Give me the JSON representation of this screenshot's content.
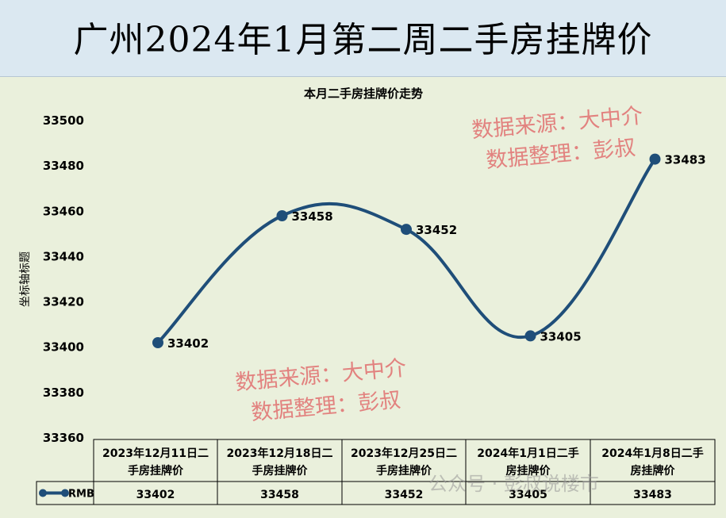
{
  "page": {
    "title": "广州2024年1月第二周二手房挂牌价"
  },
  "watermarks": {
    "source_line": "数据来源：大中介",
    "organizer_line": "数据整理：彭叔",
    "footer": "公众号 · 彭叔说楼市"
  },
  "colors": {
    "line": "#1f4e79",
    "header_bg": "#dbe8f1",
    "plot_bg": "#eaf0dc",
    "watermark": "#e06e6e"
  },
  "chart_data": {
    "type": "line",
    "title": "本月二手房挂牌价走势",
    "ylabel": "坐标轴标题",
    "xlabel": "",
    "ylim": [
      33360,
      33500
    ],
    "ytick_step": 20,
    "grid": false,
    "smooth": true,
    "categories": [
      [
        "2023年12月11日二",
        "手房挂牌价"
      ],
      [
        "2023年12月18日二",
        "手房挂牌价"
      ],
      [
        "2023年12月25日二",
        "手房挂牌价"
      ],
      [
        "2024年1月1日二手",
        "房挂牌价"
      ],
      [
        "2024年1月8日二手",
        "房挂牌价"
      ]
    ],
    "series": [
      {
        "name": "RMB",
        "values": [
          33402,
          33458,
          33452,
          33405,
          33483
        ]
      }
    ],
    "data_table": true
  }
}
